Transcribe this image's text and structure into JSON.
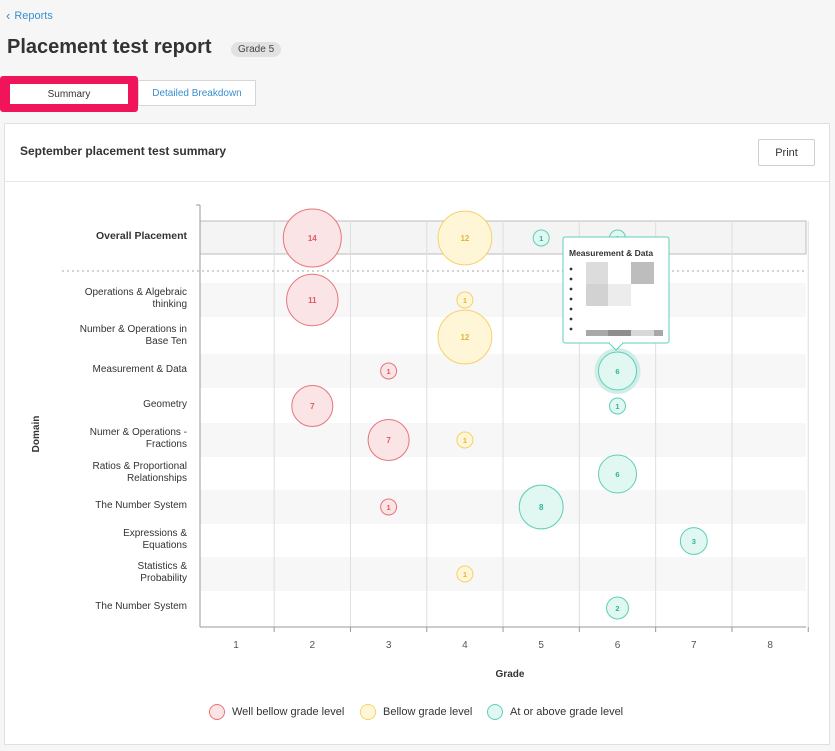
{
  "breadcrumb": {
    "label": "Reports"
  },
  "header": {
    "title": "Placement test report",
    "badge": "Grade 5"
  },
  "tabs": [
    {
      "label": "Summary",
      "active": true
    },
    {
      "label": "Detailed Breakdown",
      "active": false
    }
  ],
  "panel": {
    "title": "September placement test summary",
    "print_label": "Print"
  },
  "colors": {
    "well_below_stroke": "#e8747a",
    "well_below_fill": "#fbe4e5",
    "well_below_text": "#e25a62",
    "below_stroke": "#f5d268",
    "below_fill": "#fff6d8",
    "below_text": "#e0b53a",
    "at_above_stroke": "#5fcfb8",
    "at_above_fill": "#e0f7f2",
    "at_above_text": "#2fb59b"
  },
  "tooltip": {
    "title": "Measurement & Data"
  },
  "chart_data": {
    "type": "scatter",
    "subtype": "bubble",
    "xlabel": "Grade",
    "ylabel": "Domain",
    "x_ticks": [
      1,
      2,
      3,
      4,
      5,
      6,
      7,
      8
    ],
    "y_categories": [
      "Overall Placement",
      "Operations & Algebraic thinking",
      "Number & Operations in Base Ten",
      "Measurement & Data",
      "Geometry",
      "Numer & Operations - Fractions",
      "Ratios & Proportional Relationships",
      "The Number System",
      "Expressions & Equations",
      "Statistics & Probability",
      "The Number System"
    ],
    "series": [
      {
        "name": "Well bellow grade level",
        "key": "well_below",
        "points": [
          {
            "domain": 0,
            "grade": 2,
            "count": 14
          },
          {
            "domain": 1,
            "grade": 2,
            "count": 11
          },
          {
            "domain": 3,
            "grade": 3,
            "count": 1
          },
          {
            "domain": 4,
            "grade": 2,
            "count": 7
          },
          {
            "domain": 5,
            "grade": 3,
            "count": 7
          },
          {
            "domain": 7,
            "grade": 3,
            "count": 1
          }
        ]
      },
      {
        "name": "Bellow grade level",
        "key": "below",
        "points": [
          {
            "domain": 0,
            "grade": 4,
            "count": 12
          },
          {
            "domain": 1,
            "grade": 4,
            "count": 1
          },
          {
            "domain": 2,
            "grade": 4,
            "count": 12
          },
          {
            "domain": 5,
            "grade": 4,
            "count": 1
          },
          {
            "domain": 9,
            "grade": 4,
            "count": 1
          }
        ]
      },
      {
        "name": "At or above grade level",
        "key": "at_above",
        "points": [
          {
            "domain": 0,
            "grade": 5,
            "count": 1
          },
          {
            "domain": 0,
            "grade": 6,
            "count": 1
          },
          {
            "domain": 3,
            "grade": 6,
            "count": 6,
            "highlight": true
          },
          {
            "domain": 4,
            "grade": 6,
            "count": 1
          },
          {
            "domain": 6,
            "grade": 6,
            "count": 6
          },
          {
            "domain": 7,
            "grade": 5,
            "count": 8
          },
          {
            "domain": 8,
            "grade": 7,
            "count": 3
          },
          {
            "domain": 10,
            "grade": 6,
            "count": 2
          }
        ]
      }
    ],
    "legend_position": "bottom"
  }
}
